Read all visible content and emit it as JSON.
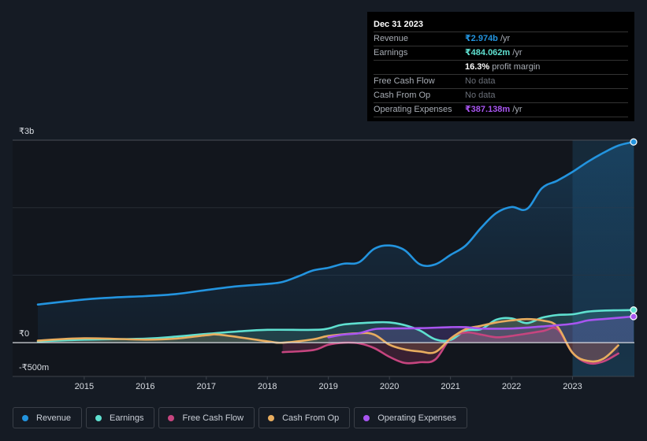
{
  "tooltip": {
    "date": "Dec 31 2023",
    "rows": [
      {
        "label": "Revenue",
        "value": "₹2.974b",
        "suffix": " /yr",
        "color": "#2394df"
      },
      {
        "label": "Earnings",
        "value": "₹484.062m",
        "suffix": " /yr",
        "color": "#5fe0d0"
      },
      {
        "label": "",
        "value": "16.3%",
        "suffix": " profit margin",
        "color": "#ffffff"
      },
      {
        "label": "Free Cash Flow",
        "value": "No data",
        "suffix": "",
        "color": "#6b7079"
      },
      {
        "label": "Cash From Op",
        "value": "No data",
        "suffix": "",
        "color": "#6b7079"
      },
      {
        "label": "Operating Expenses",
        "value": "₹387.138m",
        "suffix": " /yr",
        "color": "#a855f0"
      }
    ]
  },
  "legend": [
    {
      "label": "Revenue",
      "color": "#2394df"
    },
    {
      "label": "Earnings",
      "color": "#5fe0d0"
    },
    {
      "label": "Free Cash Flow",
      "color": "#c6457f"
    },
    {
      "label": "Cash From Op",
      "color": "#e8ad5f"
    },
    {
      "label": "Operating Expenses",
      "color": "#a855f0"
    }
  ],
  "chart_data": {
    "type": "line",
    "title": "",
    "xlabel": "",
    "ylabel": "",
    "y_unit": "₹m",
    "ylim": [
      -500,
      3000
    ],
    "xlim": [
      2014.24,
      2024.0
    ],
    "x_ticks": [
      "2015",
      "2016",
      "2017",
      "2018",
      "2019",
      "2020",
      "2021",
      "2022",
      "2023"
    ],
    "y_tick_labels": [
      {
        "value": 3000,
        "label": "₹3b"
      },
      {
        "value": 0,
        "label": "₹0"
      },
      {
        "value": -500,
        "label": "-₹500m"
      }
    ],
    "gridlines": [
      1000,
      2000,
      3000
    ],
    "highlight_from": 2023.0,
    "legend_position": "bottom-left",
    "series": [
      {
        "name": "Revenue",
        "color": "#2394df",
        "area": true,
        "points": [
          [
            2014.24,
            565
          ],
          [
            2015,
            640
          ],
          [
            2015.5,
            670
          ],
          [
            2016,
            690
          ],
          [
            2016.5,
            720
          ],
          [
            2017,
            780
          ],
          [
            2017.5,
            835
          ],
          [
            2018,
            870
          ],
          [
            2018.25,
            900
          ],
          [
            2018.5,
            980
          ],
          [
            2018.75,
            1070
          ],
          [
            2019,
            1110
          ],
          [
            2019.25,
            1170
          ],
          [
            2019.5,
            1190
          ],
          [
            2019.75,
            1390
          ],
          [
            2020,
            1440
          ],
          [
            2020.25,
            1370
          ],
          [
            2020.5,
            1160
          ],
          [
            2020.75,
            1160
          ],
          [
            2021,
            1300
          ],
          [
            2021.25,
            1440
          ],
          [
            2021.5,
            1700
          ],
          [
            2021.75,
            1920
          ],
          [
            2022,
            2010
          ],
          [
            2022.25,
            1980
          ],
          [
            2022.5,
            2290
          ],
          [
            2022.75,
            2400
          ],
          [
            2023,
            2530
          ],
          [
            2023.25,
            2680
          ],
          [
            2023.5,
            2810
          ],
          [
            2023.75,
            2920
          ],
          [
            2024,
            2974
          ]
        ]
      },
      {
        "name": "Earnings",
        "color": "#5fe0d0",
        "area": true,
        "points": [
          [
            2014.24,
            20
          ],
          [
            2015,
            45
          ],
          [
            2016,
            60
          ],
          [
            2016.5,
            90
          ],
          [
            2017,
            130
          ],
          [
            2017.5,
            165
          ],
          [
            2018,
            190
          ],
          [
            2018.75,
            190
          ],
          [
            2019,
            210
          ],
          [
            2019.25,
            270
          ],
          [
            2019.75,
            300
          ],
          [
            2020,
            300
          ],
          [
            2020.25,
            260
          ],
          [
            2020.5,
            180
          ],
          [
            2020.75,
            50
          ],
          [
            2021,
            40
          ],
          [
            2021.25,
            180
          ],
          [
            2021.5,
            200
          ],
          [
            2021.75,
            340
          ],
          [
            2022,
            360
          ],
          [
            2022.25,
            290
          ],
          [
            2022.5,
            370
          ],
          [
            2022.75,
            410
          ],
          [
            2023,
            420
          ],
          [
            2023.25,
            460
          ],
          [
            2023.5,
            475
          ],
          [
            2023.75,
            480
          ],
          [
            2024,
            484
          ]
        ]
      },
      {
        "name": "Free Cash Flow",
        "color": "#c6457f",
        "area": true,
        "points": [
          [
            2018.25,
            -140
          ],
          [
            2018.75,
            -110
          ],
          [
            2019,
            -30
          ],
          [
            2019.25,
            0
          ],
          [
            2019.5,
            -10
          ],
          [
            2019.75,
            -80
          ],
          [
            2020,
            -210
          ],
          [
            2020.25,
            -300
          ],
          [
            2020.5,
            -290
          ],
          [
            2020.75,
            -250
          ],
          [
            2021,
            60
          ],
          [
            2021.25,
            150
          ],
          [
            2021.5,
            120
          ],
          [
            2021.75,
            80
          ],
          [
            2022,
            100
          ],
          [
            2022.5,
            170
          ],
          [
            2022.75,
            200
          ],
          [
            2023,
            -150
          ],
          [
            2023.25,
            -300
          ],
          [
            2023.5,
            -280
          ],
          [
            2023.75,
            -160
          ]
        ]
      },
      {
        "name": "Cash From Op",
        "color": "#e8ad5f",
        "area": true,
        "points": [
          [
            2014.24,
            30
          ],
          [
            2015,
            65
          ],
          [
            2016,
            45
          ],
          [
            2016.5,
            60
          ],
          [
            2017,
            110
          ],
          [
            2017.25,
            115
          ],
          [
            2018,
            20
          ],
          [
            2018.25,
            0
          ],
          [
            2018.75,
            50
          ],
          [
            2019,
            100
          ],
          [
            2019.5,
            140
          ],
          [
            2019.75,
            120
          ],
          [
            2020,
            -30
          ],
          [
            2020.25,
            -100
          ],
          [
            2020.5,
            -130
          ],
          [
            2020.75,
            -140
          ],
          [
            2021,
            60
          ],
          [
            2021.25,
            200
          ],
          [
            2021.5,
            250
          ],
          [
            2021.75,
            300
          ],
          [
            2022,
            330
          ],
          [
            2022.25,
            350
          ],
          [
            2022.5,
            330
          ],
          [
            2022.75,
            240
          ],
          [
            2023,
            -150
          ],
          [
            2023.25,
            -270
          ],
          [
            2023.5,
            -240
          ],
          [
            2023.75,
            -40
          ]
        ]
      },
      {
        "name": "Operating Expenses",
        "color": "#a855f0",
        "area": true,
        "points": [
          [
            2019,
            80
          ],
          [
            2019.25,
            120
          ],
          [
            2019.5,
            140
          ],
          [
            2019.75,
            200
          ],
          [
            2020,
            210
          ],
          [
            2020.5,
            215
          ],
          [
            2021,
            230
          ],
          [
            2021.25,
            230
          ],
          [
            2021.5,
            210
          ],
          [
            2022,
            210
          ],
          [
            2022.5,
            240
          ],
          [
            2023,
            280
          ],
          [
            2023.25,
            330
          ],
          [
            2023.5,
            350
          ],
          [
            2024,
            387
          ]
        ]
      }
    ]
  }
}
